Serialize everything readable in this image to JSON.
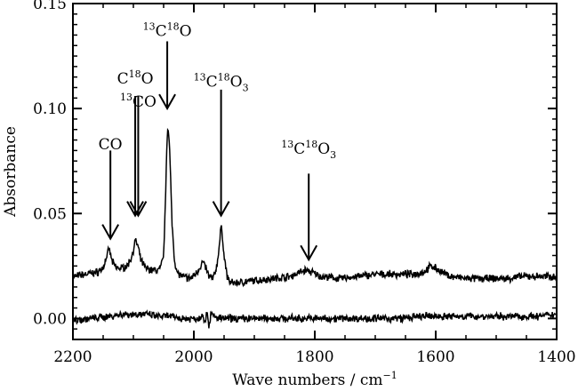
{
  "chart_data": {
    "type": "line",
    "xlabel": "Wave numbers / cm",
    "xlabel_sup": "−1",
    "ylabel": "Absorbance",
    "xlim": [
      2200,
      1400
    ],
    "ylim": [
      -0.01,
      0.15
    ],
    "x_reversed": true,
    "grid": false,
    "xticks": [
      2200,
      2000,
      1800,
      1600,
      1400
    ],
    "xtick_labels": [
      "2200",
      "2000",
      "1800",
      "1600",
      "1400"
    ],
    "yticks": [
      0.0,
      0.05,
      0.1,
      0.15
    ],
    "ytick_labels": [
      "0.00",
      "0.05",
      "0.10",
      "0.15"
    ],
    "series": [
      {
        "x": [
          2200,
          2180,
          2160,
          2150,
          2145,
          2140,
          2135,
          2128,
          2120,
          2110,
          2102,
          2097,
          2093,
          2088,
          2080,
          2070,
          2060,
          2055,
          2050,
          2047,
          2045,
          2043,
          2040,
          2036,
          2032,
          2028,
          2020,
          2005,
          1995,
          1985,
          1980,
          1975,
          1968,
          1962,
          1957,
          1955,
          1953,
          1950,
          1945,
          1940,
          1930,
          1900,
          1870,
          1840,
          1825,
          1815,
          1805,
          1790,
          1760,
          1730,
          1700,
          1670,
          1640,
          1620,
          1612,
          1607,
          1600,
          1590,
          1575,
          1550,
          1520,
          1500,
          1480,
          1460,
          1430,
          1400
        ],
        "y": [
          0.02,
          0.021,
          0.022,
          0.024,
          0.029,
          0.033,
          0.027,
          0.024,
          0.024,
          0.025,
          0.03,
          0.037,
          0.035,
          0.028,
          0.024,
          0.023,
          0.023,
          0.024,
          0.03,
          0.055,
          0.08,
          0.093,
          0.08,
          0.045,
          0.028,
          0.022,
          0.02,
          0.019,
          0.022,
          0.027,
          0.024,
          0.02,
          0.019,
          0.025,
          0.037,
          0.044,
          0.04,
          0.03,
          0.02,
          0.017,
          0.017,
          0.018,
          0.019,
          0.02,
          0.022,
          0.023,
          0.022,
          0.02,
          0.019,
          0.02,
          0.021,
          0.021,
          0.021,
          0.022,
          0.024,
          0.025,
          0.024,
          0.022,
          0.02,
          0.019,
          0.019,
          0.019,
          0.019,
          0.02,
          0.02,
          0.02
        ]
      },
      {
        "x": [
          2200,
          2170,
          2140,
          2120,
          2100,
          2080,
          2060,
          2040,
          2020,
          2000,
          1990,
          1985,
          1982,
          1978,
          1975,
          1972,
          1960,
          1940,
          1900,
          1860,
          1820,
          1780,
          1740,
          1700,
          1660,
          1620,
          1580,
          1540,
          1500,
          1460,
          1430,
          1400
        ],
        "y": [
          -0.001,
          0.0,
          0.001,
          0.002,
          0.002,
          0.002,
          0.001,
          0.001,
          0.0,
          0.0,
          0.0,
          0.003,
          -0.003,
          0.004,
          -0.004,
          0.002,
          0.0,
          0.0,
          0.0,
          0.0,
          0.0,
          0.0,
          0.0,
          0.0,
          0.0,
          0.001,
          0.001,
          0.001,
          0.001,
          0.001,
          0.001,
          0.002
        ]
      }
    ],
    "annotations": [
      {
        "id": "co",
        "base": "CO",
        "superscripts": [],
        "subscript": "",
        "arrow_x": 2138,
        "arrow_from_y": 0.08,
        "arrow_to_y": 0.038,
        "label_y": 0.0805
      },
      {
        "id": "c18o",
        "base": "C¹⁸O",
        "display": [
          [
            "",
            "C"
          ],
          [
            "18",
            "O"
          ]
        ],
        "subscript": "",
        "arrow_x": 2097,
        "arrow_from_y": 0.106,
        "arrow_to_y": 0.049,
        "label_y": 0.112
      },
      {
        "id": "13co",
        "display": [
          [
            "13",
            "CO"
          ]
        ],
        "subscript": "",
        "arrow_x": 2092,
        "arrow_from_y": 0.106,
        "arrow_to_y": 0.049,
        "label_y": 0.101
      },
      {
        "id": "13c18o",
        "display": [
          [
            "13",
            "C"
          ],
          [
            "18",
            "O"
          ]
        ],
        "subscript": "",
        "arrow_x": 2044,
        "arrow_from_y": 0.132,
        "arrow_to_y": 0.1,
        "label_y": 0.1345
      },
      {
        "id": "13c18o3-a",
        "display": [
          [
            "13",
            "C"
          ],
          [
            "18",
            "O"
          ]
        ],
        "subscript": "3",
        "arrow_x": 1955,
        "arrow_from_y": 0.109,
        "arrow_to_y": 0.049,
        "label_y": 0.1105
      },
      {
        "id": "13c18o3-b",
        "display": [
          [
            "13",
            "C"
          ],
          [
            "18",
            "O"
          ]
        ],
        "subscript": "3",
        "arrow_x": 1810,
        "arrow_from_y": 0.069,
        "arrow_to_y": 0.028,
        "label_y": 0.0785
      }
    ]
  }
}
